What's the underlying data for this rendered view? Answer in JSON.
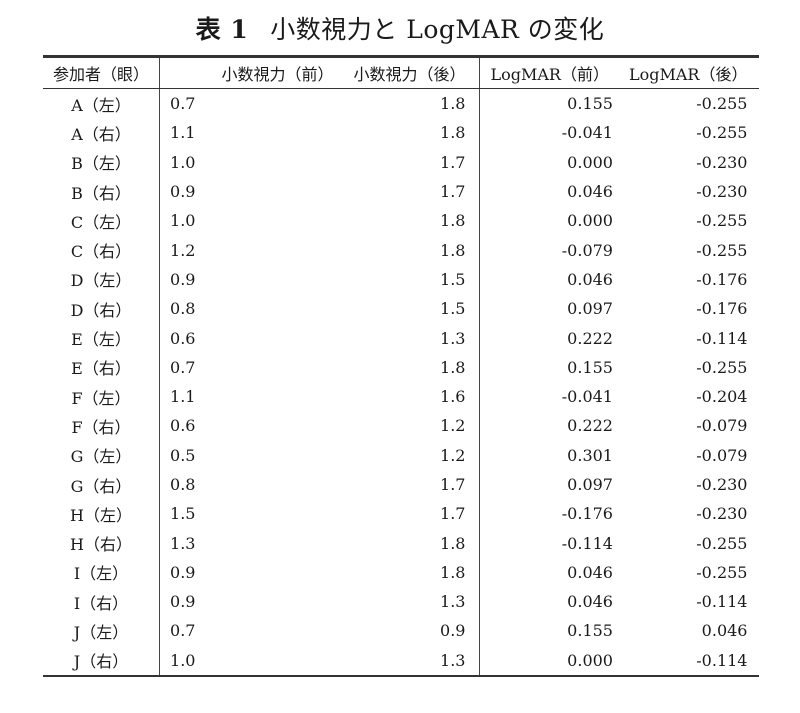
{
  "title": {
    "label": "表 1",
    "text": "小数視力と LogMAR の変化"
  },
  "table": {
    "headers": [
      "参加者（眼）",
      "小数視力（前）",
      "小数視力（後）",
      "LogMAR（前）",
      "LogMAR（後）"
    ],
    "rows": [
      [
        "A（左）",
        "0.7",
        "1.8",
        "0.155",
        "-0.255"
      ],
      [
        "A（右）",
        "1.1",
        "1.8",
        "-0.041",
        "-0.255"
      ],
      [
        "B（左）",
        "1.0",
        "1.7",
        "0.000",
        "-0.230"
      ],
      [
        "B（右）",
        "0.9",
        "1.7",
        "0.046",
        "-0.230"
      ],
      [
        "C（左）",
        "1.0",
        "1.8",
        "0.000",
        "-0.255"
      ],
      [
        "C（右）",
        "1.2",
        "1.8",
        "-0.079",
        "-0.255"
      ],
      [
        "D（左）",
        "0.9",
        "1.5",
        "0.046",
        "-0.176"
      ],
      [
        "D（右）",
        "0.8",
        "1.5",
        "0.097",
        "-0.176"
      ],
      [
        "E（左）",
        "0.6",
        "1.3",
        "0.222",
        "-0.114"
      ],
      [
        "E（右）",
        "0.7",
        "1.8",
        "0.155",
        "-0.255"
      ],
      [
        "F（左）",
        "1.1",
        "1.6",
        "-0.041",
        "-0.204"
      ],
      [
        "F（右）",
        "0.6",
        "1.2",
        "0.222",
        "-0.079"
      ],
      [
        "G（左）",
        "0.5",
        "1.2",
        "0.301",
        "-0.079"
      ],
      [
        "G（右）",
        "0.8",
        "1.7",
        "0.097",
        "-0.230"
      ],
      [
        "H（左）",
        "1.5",
        "1.7",
        "-0.176",
        "-0.230"
      ],
      [
        "H（右）",
        "1.3",
        "1.8",
        "-0.114",
        "-0.255"
      ],
      [
        "I（左）",
        "0.9",
        "1.8",
        "0.046",
        "-0.255"
      ],
      [
        "I（右）",
        "0.9",
        "1.3",
        "0.046",
        "-0.114"
      ],
      [
        "J（左）",
        "0.7",
        "0.9",
        "0.155",
        "0.046"
      ],
      [
        "J（右）",
        "1.0",
        "1.3",
        "0.000",
        "-0.114"
      ]
    ]
  }
}
